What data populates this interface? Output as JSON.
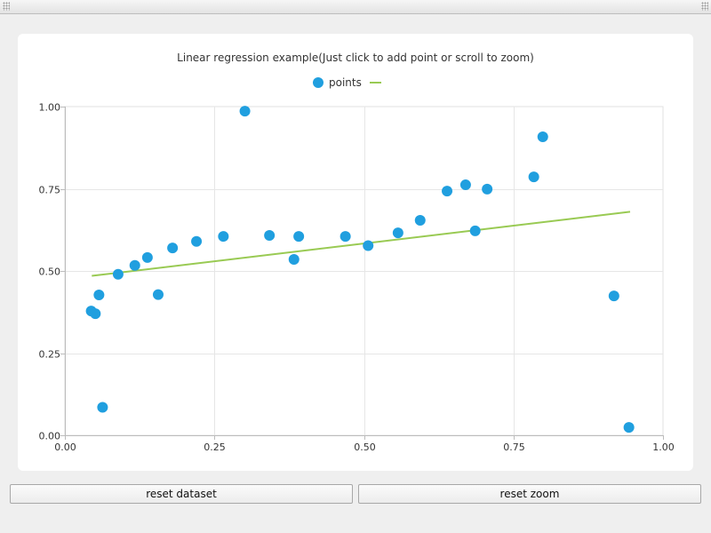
{
  "chart_data": {
    "type": "scatter",
    "title": "Linear regression example(Just click to add point or scroll to zoom)",
    "legend": {
      "placement": "top-center",
      "entries": [
        {
          "label": "points",
          "marker": "circle",
          "color": "#209fdf"
        },
        {
          "label": "",
          "marker": "line",
          "color": "#99ca53"
        }
      ]
    },
    "xlim": [
      0,
      1
    ],
    "ylim": [
      0,
      1
    ],
    "x_ticks": [
      "0.00",
      "0.25",
      "0.50",
      "0.75",
      "1.00"
    ],
    "y_ticks": [
      "0.00",
      "0.25",
      "0.50",
      "0.75",
      "1.00"
    ],
    "grid": true,
    "series": [
      {
        "name": "points",
        "color": "#209fdf",
        "points": [
          {
            "x": 0.044,
            "y": 0.378
          },
          {
            "x": 0.051,
            "y": 0.37
          },
          {
            "x": 0.057,
            "y": 0.427
          },
          {
            "x": 0.063,
            "y": 0.085
          },
          {
            "x": 0.089,
            "y": 0.49
          },
          {
            "x": 0.117,
            "y": 0.517
          },
          {
            "x": 0.138,
            "y": 0.541
          },
          {
            "x": 0.156,
            "y": 0.428
          },
          {
            "x": 0.18,
            "y": 0.57
          },
          {
            "x": 0.22,
            "y": 0.59
          },
          {
            "x": 0.265,
            "y": 0.605
          },
          {
            "x": 0.301,
            "y": 0.986
          },
          {
            "x": 0.342,
            "y": 0.608
          },
          {
            "x": 0.383,
            "y": 0.535
          },
          {
            "x": 0.391,
            "y": 0.605
          },
          {
            "x": 0.469,
            "y": 0.605
          },
          {
            "x": 0.507,
            "y": 0.577
          },
          {
            "x": 0.557,
            "y": 0.616
          },
          {
            "x": 0.594,
            "y": 0.654
          },
          {
            "x": 0.639,
            "y": 0.743
          },
          {
            "x": 0.67,
            "y": 0.762
          },
          {
            "x": 0.686,
            "y": 0.622
          },
          {
            "x": 0.706,
            "y": 0.749
          },
          {
            "x": 0.784,
            "y": 0.786
          },
          {
            "x": 0.799,
            "y": 0.908
          },
          {
            "x": 0.918,
            "y": 0.424
          },
          {
            "x": 0.943,
            "y": 0.024
          }
        ]
      }
    ],
    "regression_line": {
      "color": "#99ca53",
      "x": [
        0.045,
        0.945
      ],
      "y": [
        0.485,
        0.68
      ]
    }
  },
  "buttons": {
    "reset_dataset": "reset dataset",
    "reset_zoom": "reset zoom"
  }
}
